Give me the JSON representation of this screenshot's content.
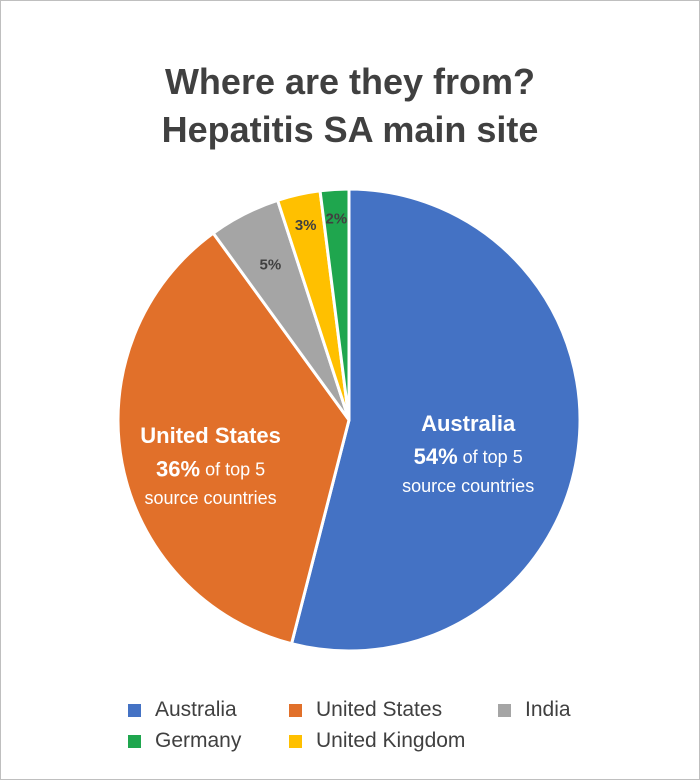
{
  "chart_data": {
    "type": "pie",
    "title_lines": [
      "Where are they from?",
      "Hepatitis SA main site"
    ],
    "slices": [
      {
        "name": "Australia",
        "value": 54,
        "color": "#4472C4",
        "label_lines": [
          "Australia",
          "54% of top 5",
          "source countries"
        ]
      },
      {
        "name": "United States",
        "value": 36,
        "color": "#E1702A",
        "label_lines": [
          "United States",
          "36% of top 5",
          "source countries"
        ]
      },
      {
        "name": "India",
        "value": 5,
        "color": "#A5A5A5",
        "label_lines": [
          "5%"
        ]
      },
      {
        "name": "United Kingdom",
        "value": 3,
        "color": "#FFC000",
        "label_lines": [
          "3%"
        ]
      },
      {
        "name": "Germany",
        "value": 2,
        "color": "#1FA64E",
        "label_lines": [
          "2%"
        ]
      }
    ],
    "legend": {
      "placement": "bottom",
      "items": [
        {
          "name": "Australia",
          "color": "#4472C4"
        },
        {
          "name": "United States",
          "color": "#E1702A"
        },
        {
          "name": "India",
          "color": "#A5A5A5"
        },
        {
          "name": "Germany",
          "color": "#1FA64E"
        },
        {
          "name": "United Kingdom",
          "color": "#FFC000"
        }
      ]
    }
  }
}
